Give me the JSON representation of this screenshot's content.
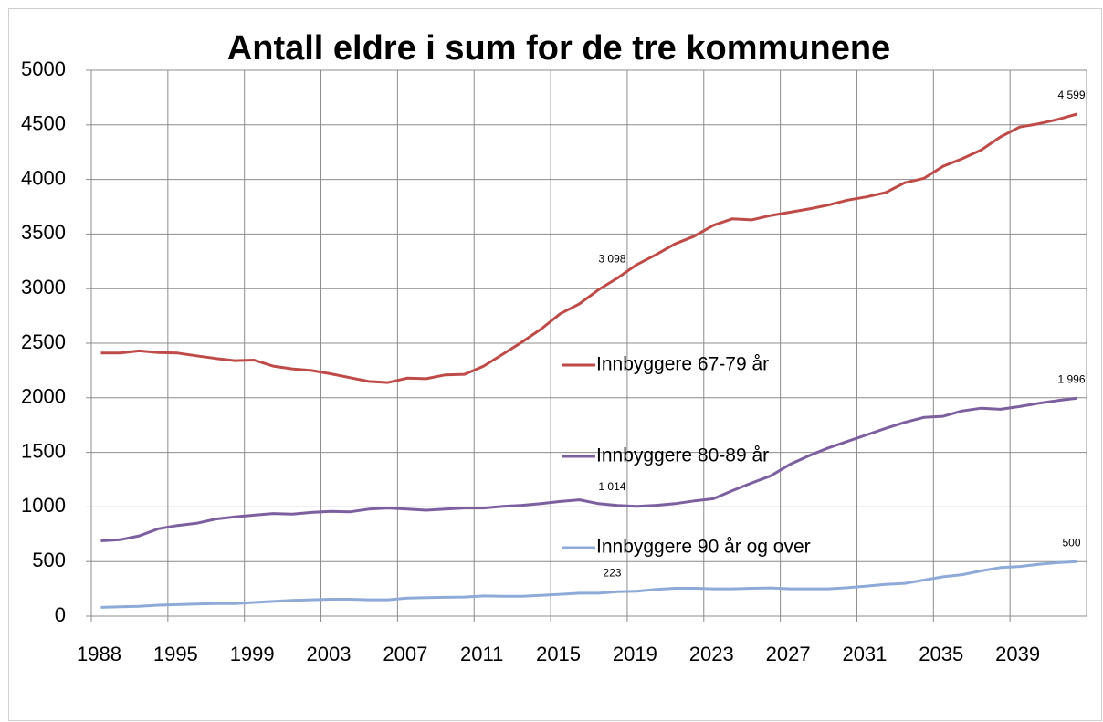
{
  "chart_data": {
    "type": "line",
    "title": "Antall eldre i sum for de tre kommunene",
    "categories": [
      1988,
      null,
      null,
      null,
      1995,
      null,
      null,
      null,
      1999,
      null,
      null,
      null,
      2003,
      null,
      null,
      null,
      2007,
      null,
      null,
      null,
      2011,
      null,
      null,
      null,
      2015,
      null,
      null,
      null,
      2019,
      null,
      null,
      null,
      2023,
      null,
      null,
      null,
      2027,
      null,
      null,
      null,
      2031,
      null,
      null,
      null,
      2035,
      null,
      null,
      null,
      2039,
      null,
      null,
      null
    ],
    "series": [
      {
        "name": "Innbyggere 67-79 år",
        "color": "#be4b48",
        "values": [
          2410,
          2410,
          2430,
          2415,
          2410,
          2385,
          2360,
          2340,
          2345,
          2290,
          2265,
          2250,
          2220,
          2185,
          2150,
          2140,
          2180,
          2175,
          2210,
          2215,
          2290,
          2400,
          2510,
          2630,
          2770,
          2860,
          2990,
          3098,
          3220,
          3310,
          3410,
          3480,
          3580,
          3640,
          3630,
          3670,
          3700,
          3730,
          3765,
          3810,
          3840,
          3880,
          3970,
          4010,
          4120,
          4190,
          4270,
          4390,
          4480,
          4510,
          4550,
          4599
        ],
        "value_labels": [
          null,
          null,
          null,
          null,
          null,
          null,
          null,
          null,
          null,
          null,
          null,
          null,
          null,
          null,
          null,
          null,
          null,
          null,
          null,
          null,
          null,
          null,
          null,
          null,
          null,
          null,
          null,
          "3 098",
          null,
          null,
          null,
          null,
          null,
          null,
          null,
          null,
          null,
          null,
          null,
          null,
          null,
          null,
          null,
          null,
          null,
          null,
          null,
          null,
          null,
          null,
          null,
          "4 599"
        ]
      },
      {
        "name": "Innbyggere 80-89 år",
        "color": "#7d5fa0",
        "values": [
          690,
          700,
          735,
          800,
          830,
          850,
          890,
          910,
          925,
          940,
          935,
          950,
          960,
          955,
          980,
          990,
          980,
          970,
          980,
          990,
          990,
          1005,
          1015,
          1030,
          1050,
          1065,
          1030,
          1014,
          1005,
          1015,
          1030,
          1055,
          1075,
          1150,
          1220,
          1285,
          1390,
          1470,
          1540,
          1600,
          1660,
          1720,
          1775,
          1820,
          1830,
          1880,
          1905,
          1895,
          1920,
          1950,
          1975,
          1996
        ],
        "value_labels": [
          null,
          null,
          null,
          null,
          null,
          null,
          null,
          null,
          null,
          null,
          null,
          null,
          null,
          null,
          null,
          null,
          null,
          null,
          null,
          null,
          null,
          null,
          null,
          null,
          null,
          null,
          null,
          "1 014",
          null,
          null,
          null,
          null,
          null,
          null,
          null,
          null,
          null,
          null,
          null,
          null,
          null,
          null,
          null,
          null,
          null,
          null,
          null,
          null,
          null,
          null,
          null,
          "1 996"
        ]
      },
      {
        "name": "Innbyggere 90 år og over",
        "color": "#8eaad8",
        "values": [
          80,
          85,
          90,
          100,
          105,
          110,
          115,
          115,
          125,
          135,
          145,
          150,
          155,
          155,
          150,
          150,
          165,
          170,
          172,
          175,
          185,
          182,
          182,
          190,
          200,
          210,
          210,
          223,
          228,
          245,
          255,
          255,
          250,
          250,
          255,
          258,
          250,
          250,
          250,
          260,
          275,
          290,
          300,
          330,
          360,
          380,
          415,
          445,
          455,
          475,
          490,
          500
        ],
        "value_labels": [
          null,
          null,
          null,
          null,
          null,
          null,
          null,
          null,
          null,
          null,
          null,
          null,
          null,
          null,
          null,
          null,
          null,
          null,
          null,
          null,
          null,
          null,
          null,
          null,
          null,
          null,
          null,
          "223",
          null,
          null,
          null,
          null,
          null,
          null,
          null,
          null,
          null,
          null,
          null,
          null,
          null,
          null,
          null,
          null,
          null,
          null,
          null,
          null,
          null,
          null,
          null,
          "500"
        ]
      }
    ],
    "ylim": [
      0,
      5000
    ],
    "yticks": [
      0,
      500,
      1000,
      1500,
      2000,
      2500,
      3000,
      3500,
      4000,
      4500,
      5000
    ],
    "grid": true,
    "legend": "center"
  }
}
